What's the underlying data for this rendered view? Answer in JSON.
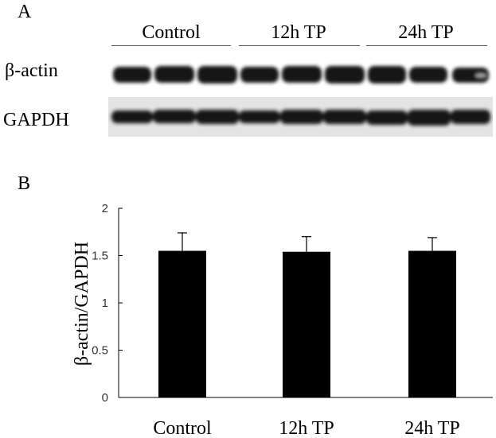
{
  "panel_a": {
    "letter": "A",
    "groups": [
      "Control",
      "12h TP",
      "24h TP"
    ],
    "rows": [
      "β-actin",
      "GAPDH"
    ]
  },
  "panel_b": {
    "letter": "B"
  },
  "chart_data": {
    "type": "bar",
    "categories": [
      "Control",
      "12h TP",
      "24h TP"
    ],
    "values": [
      1.55,
      1.54,
      1.55
    ],
    "errors": [
      0.19,
      0.16,
      0.14
    ],
    "title": "",
    "xlabel": "",
    "ylabel": "β-actin/GAPDH",
    "ylim": [
      0,
      2
    ],
    "yticks": [
      "0",
      "0.5",
      "1",
      "1.5",
      "2"
    ],
    "grid": false,
    "bar_color": "#000000"
  }
}
